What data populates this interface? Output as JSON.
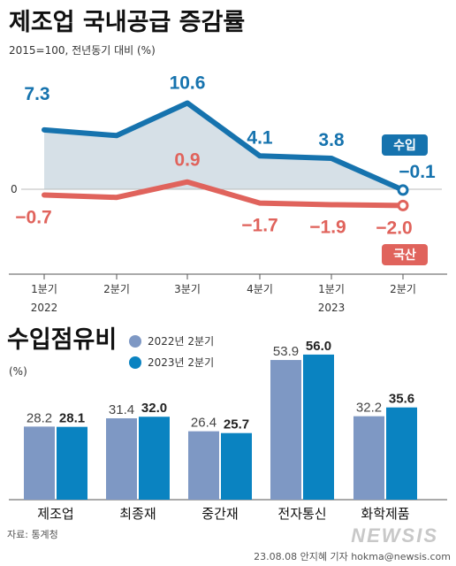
{
  "header": {
    "title": "제조업 국내공급 증감률",
    "subtitle": "2015=100, 전년동기 대비 (%)"
  },
  "chart_data": [
    {
      "type": "line",
      "title": "제조업 국내공급 증감률",
      "x": [
        "1분기",
        "2분기",
        "3분기",
        "4분기",
        "1분기",
        "2분기"
      ],
      "x_years": [
        "2022",
        "",
        "",
        "",
        "2023",
        ""
      ],
      "zero_label": "0",
      "ylim": [
        -3.5,
        12.5
      ],
      "series": [
        {
          "name": "수입",
          "values": [
            7.3,
            6.6,
            10.6,
            4.1,
            3.8,
            -0.1
          ],
          "labels": [
            "7.3",
            "",
            "10.6",
            "4.1",
            "3.8",
            "−0.1"
          ],
          "color": "#1673ae",
          "fill": "#cfdbe3"
        },
        {
          "name": "국산",
          "values": [
            -0.7,
            -1.0,
            0.9,
            -1.7,
            -1.9,
            -2.0
          ],
          "labels": [
            "−0.7",
            "",
            "0.9",
            "−1.7",
            "−1.9",
            "−2.0"
          ],
          "color": "#e0635c"
        }
      ]
    },
    {
      "type": "bar",
      "title": "수입점유비",
      "unit": "(%)",
      "categories": [
        "제조업",
        "최종재",
        "중간재",
        "전자통신",
        "화학제품"
      ],
      "ylim": [
        0,
        60
      ],
      "series": [
        {
          "name": "2022년 2분기",
          "values": [
            28.2,
            31.4,
            26.4,
            53.9,
            32.2
          ],
          "labels": [
            "28.2",
            "31.4",
            "26.4",
            "53.9",
            "32.2"
          ],
          "color": "#7e98c4"
        },
        {
          "name": "2023년 2분기",
          "values": [
            28.1,
            32.0,
            25.7,
            56.0,
            35.6
          ],
          "labels": [
            "28.1",
            "32.0",
            "25.7",
            "56.0",
            "35.6"
          ],
          "color": "#0a83c1"
        }
      ]
    }
  ],
  "footer": {
    "source": "자료: 통계청",
    "credit": "23.08.08 안지혜 기자 hokma@newsis.com",
    "logo": "NEWSIS"
  }
}
